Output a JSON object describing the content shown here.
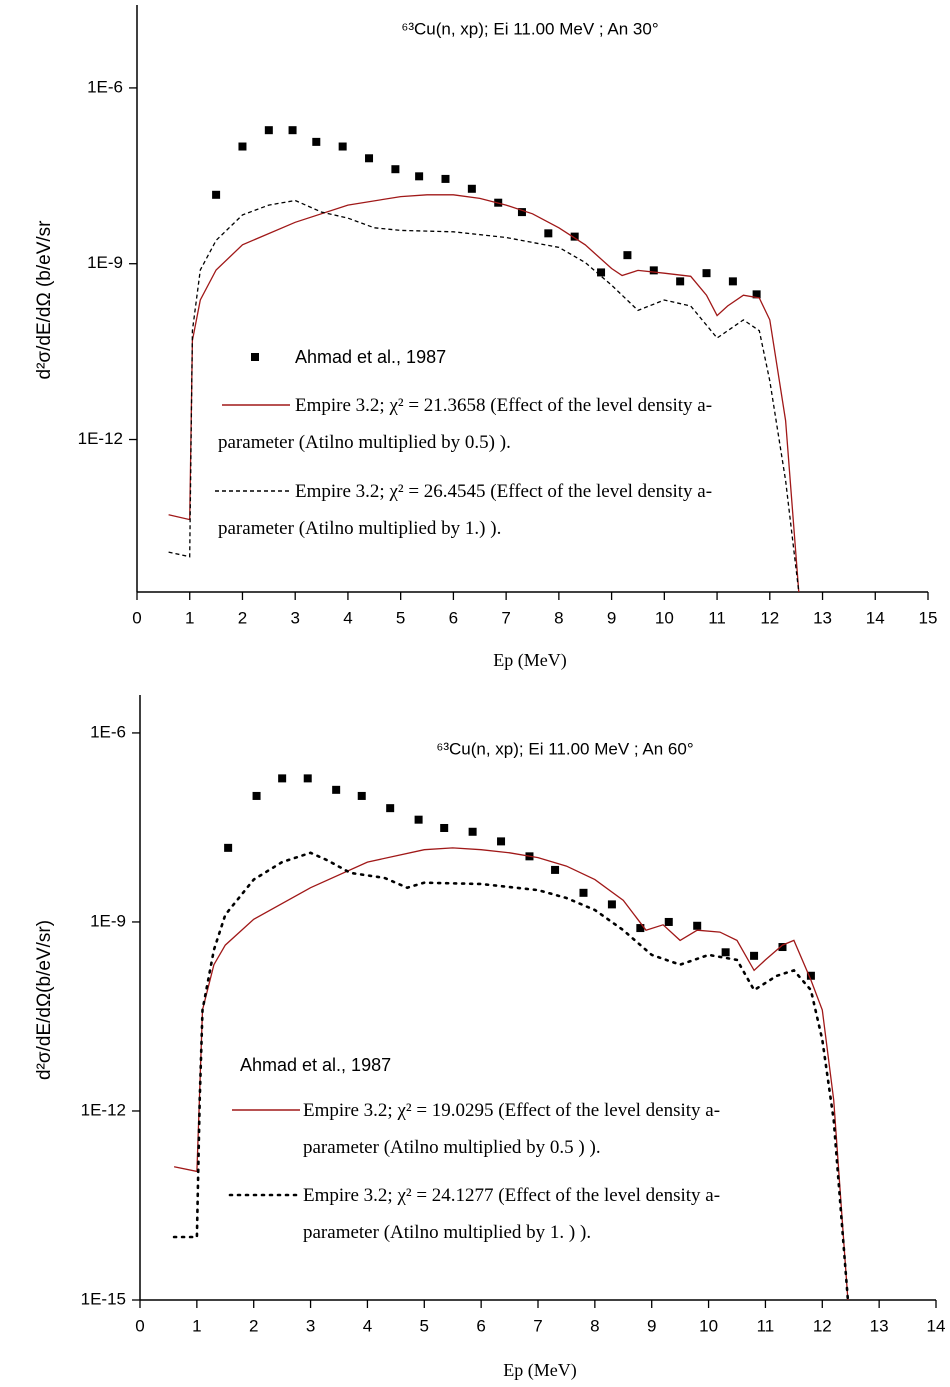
{
  "chart_data": [
    {
      "type": "line",
      "title": "⁶³Cu(n, xp); Ei 11.00 MeV ; An 30°",
      "x_label": "Ep (MeV)",
      "y_label": "d²σ/dE/dΩ (b/eV/sr",
      "log_y": true,
      "xlim": [
        0,
        15
      ],
      "ylim": [
        2.5e-15,
        2.6e-05
      ],
      "xticks": [
        0,
        1,
        2,
        3,
        4,
        5,
        6,
        7,
        8,
        9,
        10,
        11,
        12,
        13,
        14,
        15
      ],
      "yticks": [
        {
          "value": 1e-06,
          "label": "1E-6"
        },
        {
          "value": 1e-09,
          "label": "1E-9"
        },
        {
          "value": 1e-12,
          "label": "1E-12"
        }
      ],
      "series": [
        {
          "name": "Ahmad et al., 1987",
          "color": "#000000",
          "style": "square",
          "x": [
            1.5,
            2.0,
            2.5,
            2.95,
            3.4,
            3.9,
            4.4,
            4.9,
            5.35,
            5.85,
            6.35,
            6.85,
            7.3,
            7.8,
            8.3,
            8.8,
            9.3,
            9.8,
            10.3,
            10.8,
            11.3,
            11.75
          ],
          "values": [
            1.5e-08,
            1e-07,
            1.9e-07,
            1.9e-07,
            1.2e-07,
            1e-07,
            6.3e-08,
            4.1e-08,
            3.1e-08,
            2.8e-08,
            1.9e-08,
            1.1e-08,
            7.6e-09,
            3.3e-09,
            2.9e-09,
            7.1e-10,
            1.4e-09,
            7.7e-10,
            5e-10,
            6.9e-10,
            5e-10,
            3e-10
          ]
        },
        {
          "name": "Empire 3.2; χ² = 21.3658 (Effect of the level density a-parameter (Atilno multiplied by 0.5) ).",
          "color": "#a01818",
          "style": "solid",
          "x": [
            0.6,
            1.0,
            1.05,
            1.2,
            1.5,
            2,
            3,
            4,
            5,
            5.5,
            6,
            6.5,
            7,
            7.5,
            8,
            8.5,
            9,
            9.2,
            9.5,
            10,
            10.5,
            10.8,
            11,
            11.2,
            11.5,
            11.8,
            12,
            12.3,
            12.55
          ],
          "values": [
            5.2e-14,
            4.3e-14,
            4.9e-11,
            2.4e-10,
            7.8e-10,
            2.1e-09,
            5.1e-09,
            1e-08,
            1.4e-08,
            1.5e-08,
            1.5e-08,
            1.3e-08,
            1e-08,
            7.1e-09,
            4.1e-09,
            2.1e-09,
            8.3e-10,
            6.3e-10,
            7.7e-10,
            6.9e-10,
            6.1e-10,
            2.9e-10,
            1.3e-10,
            1.9e-10,
            2.9e-10,
            2.6e-10,
            1.1e-10,
            2.1e-12,
            2.5e-15
          ]
        },
        {
          "name": "Empire 3.2; χ² = 26.4545 (Effect of the level density a-parameter (Atilno multiplied by 1.) ).",
          "color": "#000000",
          "style": "dashed",
          "x": [
            0.6,
            1.0,
            1.05,
            1.2,
            1.5,
            2,
            2.5,
            3,
            3.5,
            4,
            4.5,
            5,
            6,
            7,
            8,
            8.5,
            9,
            9.5,
            10,
            10.5,
            11,
            11.5,
            11.8,
            12,
            12.3,
            12.55
          ],
          "values": [
            1.2e-14,
            1e-14,
            7.2e-11,
            7.8e-10,
            2.5e-09,
            6.8e-09,
            1e-08,
            1.2e-08,
            7.6e-09,
            6e-09,
            4.1e-09,
            3.7e-09,
            3.5e-09,
            2.8e-09,
            1.9e-09,
            1.05e-09,
            4.3e-10,
            1.6e-10,
            2.4e-10,
            1.9e-10,
            5.4e-11,
            1.1e-10,
            7.2e-11,
            1e-11,
            2e-13,
            2.5e-15
          ]
        }
      ]
    },
    {
      "type": "line",
      "title": "⁶³Cu(n, xp); Ei 11.00 MeV ; An 60°",
      "x_label": "Ep (MeV)",
      "y_label": "d²σ/dE/dΩ(b/eV/sr)",
      "log_y": true,
      "xlim": [
        0,
        14
      ],
      "ylim": [
        1e-15,
        4e-06
      ],
      "xticks": [
        0,
        1,
        2,
        3,
        4,
        5,
        6,
        7,
        8,
        9,
        10,
        11,
        12,
        13,
        14
      ],
      "yticks": [
        {
          "value": 1e-06,
          "label": "1E-6"
        },
        {
          "value": 1e-09,
          "label": "1E-9"
        },
        {
          "value": 1e-12,
          "label": "1E-12"
        },
        {
          "value": 1e-15,
          "label": "1E-15"
        }
      ],
      "series": [
        {
          "name": "Ahmad et al., 1987",
          "color": "#000000",
          "style": "square",
          "x": [
            1.55,
            2.05,
            2.5,
            2.95,
            3.45,
            3.9,
            4.4,
            4.9,
            5.35,
            5.85,
            6.35,
            6.85,
            7.3,
            7.8,
            8.3,
            8.8,
            9.3,
            9.8,
            10.3,
            10.8,
            11.3,
            11.8
          ],
          "values": [
            1.5e-08,
            1e-07,
            1.9e-07,
            1.9e-07,
            1.25e-07,
            1e-07,
            6.4e-08,
            4.2e-08,
            3.1e-08,
            2.7e-08,
            1.9e-08,
            1.1e-08,
            6.7e-09,
            2.9e-09,
            1.9e-09,
            8e-10,
            1e-09,
            8.7e-10,
            3.3e-10,
            2.9e-10,
            4e-10,
            1.4e-10
          ]
        },
        {
          "name": "Empire 3.2; χ² = 19.0295 (Effect of the level density a-parameter (Atilno multiplied by 0.5 ) ).",
          "color": "#a01818",
          "style": "solid",
          "x": [
            0.6,
            1.0,
            1.1,
            1.3,
            1.5,
            2,
            3,
            4,
            5,
            5.5,
            6,
            6.5,
            7,
            7.5,
            8,
            8.5,
            8.9,
            9.2,
            9.5,
            9.8,
            10.2,
            10.5,
            10.8,
            11,
            11.3,
            11.5,
            11.8,
            12,
            12.2,
            12.45
          ],
          "values": [
            1.3e-13,
            1.1e-13,
            4e-11,
            2.1e-10,
            4.3e-10,
            1.1e-09,
            3.5e-09,
            8.9e-09,
            1.4e-08,
            1.5e-08,
            1.4e-08,
            1.25e-08,
            1.05e-08,
            7.7e-09,
            4.7e-09,
            2.2e-09,
            7.4e-10,
            9e-10,
            5.1e-10,
            7.4e-10,
            6.9e-10,
            5.1e-10,
            1.7e-10,
            2.5e-10,
            4.3e-10,
            5.1e-10,
            1.2e-10,
            4e-11,
            1.5e-12,
            1e-15
          ]
        },
        {
          "name": "Empire 3.2; χ² = 24.1277 (Effect of the level density a-parameter (Atilno multiplied by 1. ) ).",
          "color": "#000000",
          "style": "dotted",
          "x": [
            0.6,
            1.0,
            1.05,
            1.1,
            1.3,
            1.5,
            2,
            2.5,
            3,
            3.3,
            3.7,
            4.3,
            4.7,
            5,
            6,
            7,
            7.5,
            8,
            8.5,
            9,
            9.5,
            10,
            10.5,
            10.8,
            11.2,
            11.5,
            11.8,
            12,
            12.2,
            12.45
          ],
          "values": [
            1e-14,
            1e-14,
            1.5e-12,
            4e-11,
            3.6e-10,
            1.3e-09,
            4.7e-09,
            8.9e-09,
            1.25e-08,
            9.5e-09,
            6e-09,
            5e-09,
            3.5e-09,
            4.2e-09,
            4e-09,
            3.2e-09,
            2.4e-09,
            1.55e-09,
            7.4e-10,
            3e-10,
            2.1e-10,
            3e-10,
            2.5e-10,
            8.3e-11,
            1.4e-10,
            1.7e-10,
            8.3e-11,
            1.35e-11,
            7.2e-13,
            1e-15
          ]
        }
      ]
    }
  ]
}
